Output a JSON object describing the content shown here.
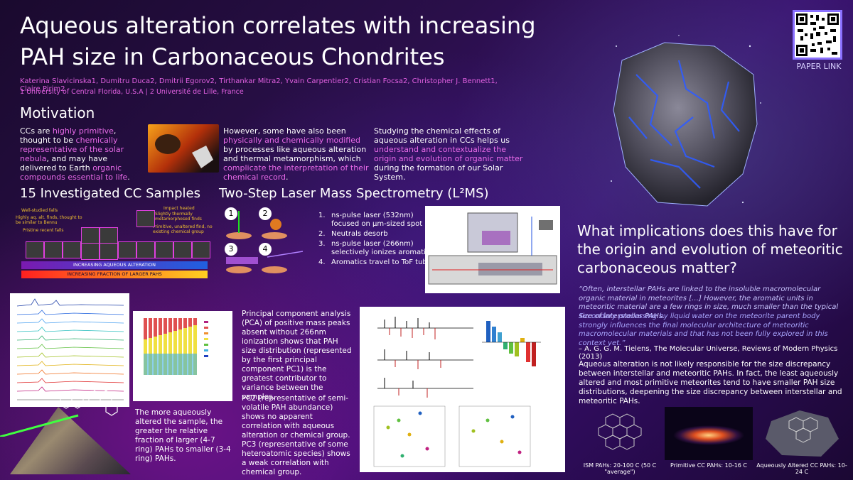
{
  "header": {
    "title": "Aqueous alteration correlates with increasing PAH size in Carbonaceous Chondrites",
    "authors": "Katerina Slavicinska1, Dumitru Duca2, Dmitrii Egorov2, Tirthankar Mitra2, Yvain Carpentier2, Cristian Focsa2, Christopher J. Bennett1, Claire Pirim2",
    "affiliations": "1 University of Central Florida, U.S.A | 2 Université de Lille, France",
    "qr_label": "PAPER LINK"
  },
  "motivation": {
    "heading": "Motivation",
    "col1_a": "CCs are ",
    "col1_b": "highly primitive",
    "col1_c": ", thought to be ",
    "col1_d": "chemically representative of the solar nebula",
    "col1_e": ", and may have delivered to Earth ",
    "col1_f": "organic compounds essential to life",
    "col1_g": ".",
    "col2_a": "However, some have also been ",
    "col2_b": "physically and chemically modified",
    "col2_c": " by processes like aqueous alteration and thermal metamorphism, which ",
    "col2_d": "complicate the interpretation of their chemical record",
    "col2_e": ".",
    "col3_a": "Studying the chemical effects of aqueous alteration in CCs helps us ",
    "col3_b": "understand and contextualize the origin and evolution of organic matter",
    "col3_c": " during the formation of our Solar System."
  },
  "samples": {
    "heading": "15 Investigated CC Samples",
    "label_well_studied": "Well-studied falls",
    "label_pristine": "Highly aq. alt. finds, thought to be similar to Bennu",
    "label_recent": "Pristine recent falls",
    "label_impact": "Impact heated",
    "label_thermal": "Slightly thermally metamorphosed finds",
    "label_primitive": "Primitive, unaltered find, no existing chemical group",
    "arrow1": "INCREASING AQUEOUS ALTERATION",
    "arrow2": "INCREASING FRACTION OF LARGER PAHS"
  },
  "l2ms": {
    "heading": "Two-Step Laser Mass Spectrometry (L²MS)",
    "steps": [
      "ns-pulse laser (532nm) focused on µm-sized spot",
      "Neutrals desorb",
      "ns-pulse laser (266nm) selectively ionizes aromatics",
      "Aromatics travel to ToF tube"
    ],
    "step_nums": [
      "1.",
      "2.",
      "3.",
      "4."
    ],
    "icons": [
      "1",
      "2",
      "3",
      "4"
    ]
  },
  "results": {
    "caption_ring": "The more aqueously altered the sample, the greater the relative fraction of larger (4-7 ring) PAHs to smaller (3-4 ring) PAHs.",
    "pca_text": "Principal component analysis (PCA) of positive mass peaks absent without 266nm ionization shows that PAH size distribution (represented by the first principal component PC1) is the greatest contributor to variance between the samples.",
    "pc2_text": "PC2 (representative of semi-volatile PAH abundance) shows no apparent correlation with aqueous alteration or chemical group. PC3 (representative of some heteroatomic species) shows a weak correlation with chemical group."
  },
  "conclusion": {
    "question": "What implications does this have for the origin and evolution of meteoritic carbonaceous matter?",
    "quote1": "“Often, interstellar PAHs are linked to the insoluble macromolecular organic material in meteorites […] However, the aromatic units in meteoritic material are a few rings in size, much smaller than the typical size of interstellar PAHs.",
    "quote2": "Secondary processing by liquid water on the meteorite parent body strongly influences the final molecular architecture of meteoritic macromolecular materials and that has not been fully explored in this context yet.”",
    "citation": "– A. G. G. M. Tielens, The Molecular Universe, Reviews of Modern Physics (2013)",
    "summary": "Aqueous alteration is not likely responsible for the size discrepancy between interstellar and meteoritic PAHs. In fact, the least aqueously altered and most primitive meteorites tend to have smaller PAH size distributions, deepening the size discrepancy between interstellar and meteoritic PAHs.",
    "captions": [
      "ISM PAHs: 20-100 C (50 C \"average\")",
      "Primitive CC PAHs: 10-16 C",
      "Aqueously Altered CC PAHs: 10-24 C"
    ]
  },
  "colors": {
    "highlight": "#e86ae8",
    "title_text": "#ffffff",
    "accent": "#8a70ff"
  },
  "icon_names": [
    "qr-code-icon",
    "asteroid-icon",
    "meteorite-icon",
    "laser-icon",
    "pah-molecule-icon",
    "galaxy-icon"
  ]
}
